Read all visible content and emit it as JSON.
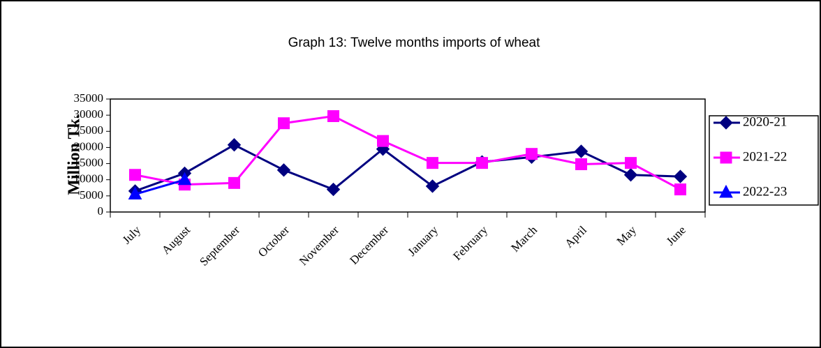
{
  "chart_data": {
    "type": "line",
    "title": "Graph 13: Twelve months imports of wheat",
    "y_label": "Million Tk.",
    "categories": [
      "July",
      "August",
      "September",
      "October",
      "November",
      "December",
      "January",
      "February",
      "March",
      "April",
      "May",
      "June"
    ],
    "series": [
      {
        "name": "2020-21",
        "color": "#000080",
        "marker": "diamond",
        "values": [
          6500,
          12000,
          20800,
          13000,
          7000,
          19500,
          8000,
          15500,
          17000,
          18800,
          11500,
          11000
        ]
      },
      {
        "name": "2021-22",
        "color": "#ff00ff",
        "marker": "square",
        "values": [
          11500,
          8500,
          9000,
          27500,
          29700,
          22000,
          15200,
          15200,
          18000,
          14800,
          15200,
          7000
        ]
      },
      {
        "name": "2022-23",
        "color": "#0000ff",
        "marker": "triangle",
        "values": [
          5500,
          10000,
          null,
          null,
          null,
          null,
          null,
          null,
          null,
          null,
          null,
          null
        ]
      }
    ],
    "ylim": [
      0,
      35000
    ],
    "yticks": [
      0,
      5000,
      10000,
      15000,
      20000,
      25000,
      30000,
      35000
    ],
    "grid": false,
    "legend": "right"
  }
}
